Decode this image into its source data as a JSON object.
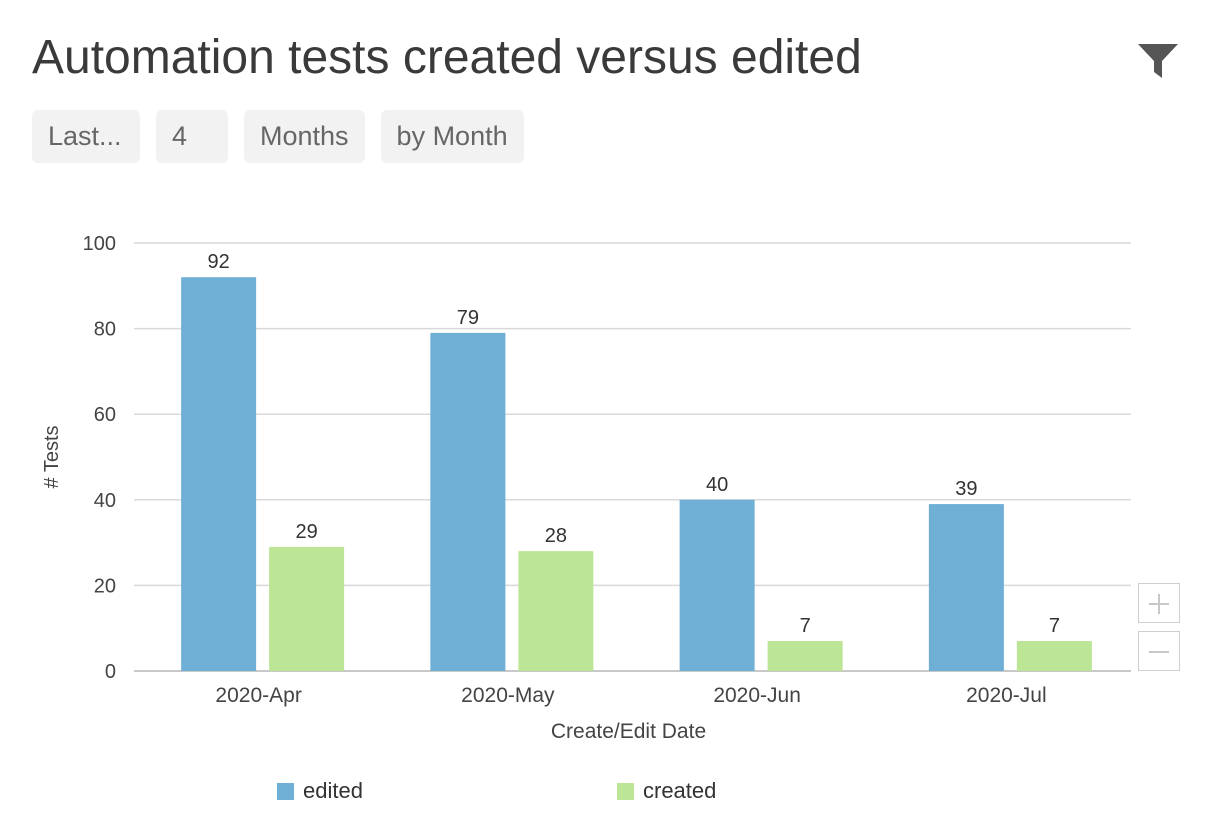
{
  "header": {
    "title": "Automation tests created versus edited",
    "filter_icon": "filter-icon"
  },
  "controls": {
    "period_mode": "Last...",
    "period_count": "4",
    "period_unit": "Months",
    "grouping": "by Month"
  },
  "zoom": {
    "in_icon": "plus-icon",
    "out_icon": "minus-icon"
  },
  "colors": {
    "edited": "#6fafd6",
    "created": "#bce595",
    "grid": "#d9d9d9",
    "axis_text": "#444444"
  },
  "chart_data": {
    "type": "bar",
    "categories": [
      "2020-Apr",
      "2020-May",
      "2020-Jun",
      "2020-Jul"
    ],
    "series": [
      {
        "name": "edited",
        "values": [
          92,
          79,
          40,
          39
        ]
      },
      {
        "name": "created",
        "values": [
          29,
          28,
          7,
          7
        ]
      }
    ],
    "ylim": [
      0,
      100
    ],
    "yticks": [
      0,
      20,
      40,
      60,
      80,
      100
    ],
    "xlabel": "Create/Edit Date",
    "ylabel": "# Tests",
    "grid": true,
    "data_labels": true,
    "legend_position": "bottom"
  }
}
